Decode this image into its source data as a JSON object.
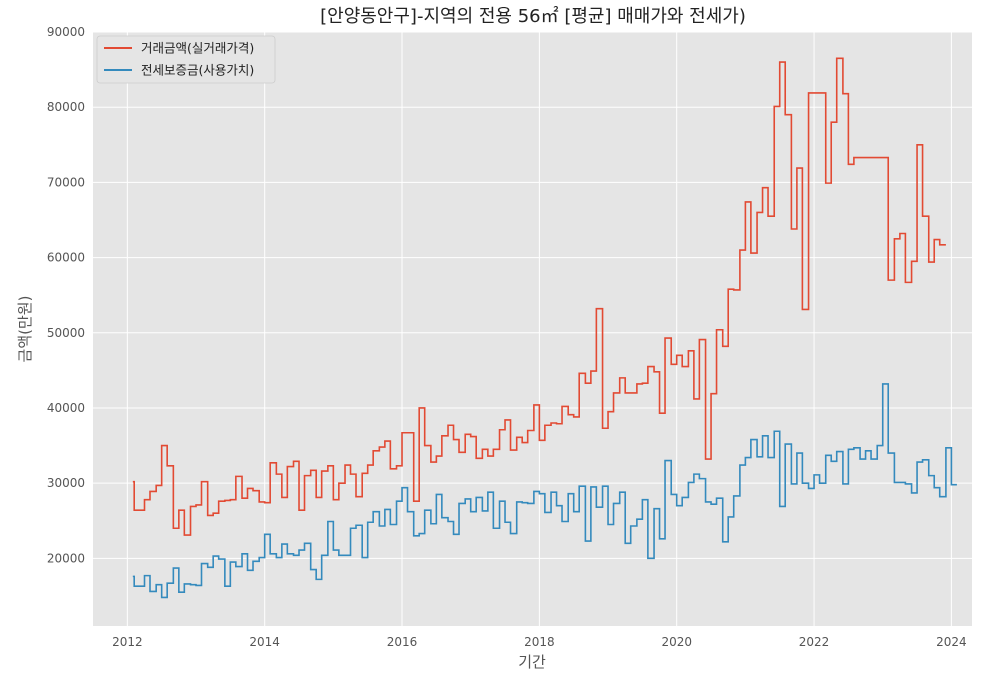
{
  "chart_data": {
    "type": "line",
    "step": true,
    "title": "[안양동안구]-지역의 전용 56㎡ [평균] 매매가와 전세가)",
    "xlabel": "기간",
    "ylabel": "금액(만원)",
    "x_ticks": [
      "2012",
      "2014",
      "2016",
      "2018",
      "2020",
      "2022",
      "2024"
    ],
    "xlim": [
      2011.5,
      2024.3
    ],
    "y_ticks": [
      "20000",
      "30000",
      "40000",
      "50000",
      "60000",
      "70000",
      "80000",
      "90000"
    ],
    "ylim": [
      11000,
      90000
    ],
    "grid": true,
    "legend_position": "top-left",
    "series": [
      {
        "name": "거래금액(실거래가격)",
        "color": "#E24A33",
        "points": [
          [
            2012.08,
            30200
          ],
          [
            2012.1,
            26400
          ],
          [
            2012.25,
            27800
          ],
          [
            2012.33,
            28900
          ],
          [
            2012.42,
            29700
          ],
          [
            2012.5,
            35000
          ],
          [
            2012.58,
            32300
          ],
          [
            2012.67,
            24000
          ],
          [
            2012.75,
            26400
          ],
          [
            2012.83,
            23100
          ],
          [
            2012.92,
            26900
          ],
          [
            2013.0,
            27100
          ],
          [
            2013.08,
            30200
          ],
          [
            2013.17,
            25700
          ],
          [
            2013.25,
            26000
          ],
          [
            2013.33,
            27600
          ],
          [
            2013.42,
            27700
          ],
          [
            2013.5,
            27800
          ],
          [
            2013.58,
            30900
          ],
          [
            2013.67,
            28000
          ],
          [
            2013.75,
            29300
          ],
          [
            2013.83,
            29000
          ],
          [
            2013.92,
            27500
          ],
          [
            2014.0,
            27400
          ],
          [
            2014.08,
            32700
          ],
          [
            2014.17,
            31200
          ],
          [
            2014.25,
            28100
          ],
          [
            2014.33,
            32200
          ],
          [
            2014.42,
            32900
          ],
          [
            2014.5,
            26400
          ],
          [
            2014.58,
            31000
          ],
          [
            2014.67,
            31700
          ],
          [
            2014.75,
            28100
          ],
          [
            2014.83,
            31600
          ],
          [
            2014.92,
            32300
          ],
          [
            2015.0,
            27800
          ],
          [
            2015.08,
            30000
          ],
          [
            2015.17,
            32400
          ],
          [
            2015.25,
            31200
          ],
          [
            2015.33,
            28200
          ],
          [
            2015.42,
            31300
          ],
          [
            2015.5,
            32400
          ],
          [
            2015.58,
            34300
          ],
          [
            2015.67,
            34800
          ],
          [
            2015.75,
            35600
          ],
          [
            2015.83,
            31900
          ],
          [
            2015.92,
            32300
          ],
          [
            2016.0,
            36700
          ],
          [
            2016.08,
            36700
          ],
          [
            2016.17,
            27600
          ],
          [
            2016.25,
            40000
          ],
          [
            2016.33,
            35000
          ],
          [
            2016.42,
            32800
          ],
          [
            2016.5,
            33600
          ],
          [
            2016.58,
            36300
          ],
          [
            2016.67,
            37700
          ],
          [
            2016.75,
            35800
          ],
          [
            2016.83,
            34100
          ],
          [
            2016.92,
            36500
          ],
          [
            2017.0,
            36200
          ],
          [
            2017.08,
            33300
          ],
          [
            2017.17,
            34500
          ],
          [
            2017.25,
            33600
          ],
          [
            2017.33,
            34500
          ],
          [
            2017.42,
            37100
          ],
          [
            2017.5,
            38400
          ],
          [
            2017.58,
            34400
          ],
          [
            2017.67,
            36100
          ],
          [
            2017.75,
            35400
          ],
          [
            2017.83,
            37000
          ],
          [
            2017.92,
            40400
          ],
          [
            2018.0,
            35700
          ],
          [
            2018.08,
            37700
          ],
          [
            2018.17,
            38000
          ],
          [
            2018.25,
            37900
          ],
          [
            2018.33,
            40200
          ],
          [
            2018.42,
            39100
          ],
          [
            2018.5,
            38800
          ],
          [
            2018.58,
            44600
          ],
          [
            2018.67,
            43300
          ],
          [
            2018.75,
            44900
          ],
          [
            2018.83,
            53200
          ],
          [
            2018.92,
            37300
          ],
          [
            2019.0,
            39500
          ],
          [
            2019.08,
            42000
          ],
          [
            2019.17,
            44000
          ],
          [
            2019.25,
            42000
          ],
          [
            2019.33,
            42000
          ],
          [
            2019.42,
            43200
          ],
          [
            2019.5,
            43300
          ],
          [
            2019.58,
            45500
          ],
          [
            2019.67,
            44800
          ],
          [
            2019.75,
            39300
          ],
          [
            2019.83,
            49300
          ],
          [
            2019.92,
            45800
          ],
          [
            2020.0,
            47000
          ],
          [
            2020.08,
            45500
          ],
          [
            2020.17,
            47600
          ],
          [
            2020.25,
            41200
          ],
          [
            2020.33,
            49100
          ],
          [
            2020.42,
            33200
          ],
          [
            2020.5,
            41900
          ],
          [
            2020.58,
            50400
          ],
          [
            2020.67,
            48200
          ],
          [
            2020.75,
            55800
          ],
          [
            2020.83,
            55700
          ],
          [
            2020.92,
            61000
          ],
          [
            2021.0,
            67400
          ],
          [
            2021.08,
            60600
          ],
          [
            2021.17,
            66000
          ],
          [
            2021.25,
            69300
          ],
          [
            2021.33,
            65500
          ],
          [
            2021.42,
            80100
          ],
          [
            2021.5,
            86000
          ],
          [
            2021.58,
            79000
          ],
          [
            2021.67,
            63800
          ],
          [
            2021.75,
            71900
          ],
          [
            2021.83,
            53100
          ],
          [
            2021.92,
            81900
          ],
          [
            2022.0,
            81900
          ],
          [
            2022.08,
            81900
          ],
          [
            2022.17,
            69900
          ],
          [
            2022.25,
            78000
          ],
          [
            2022.33,
            86500
          ],
          [
            2022.42,
            81800
          ],
          [
            2022.5,
            72400
          ],
          [
            2022.58,
            73300
          ],
          [
            2022.67,
            73300
          ],
          [
            2022.75,
            73300
          ],
          [
            2022.83,
            73300
          ],
          [
            2022.92,
            73300
          ],
          [
            2023.0,
            73300
          ],
          [
            2023.08,
            57000
          ],
          [
            2023.17,
            62500
          ],
          [
            2023.25,
            63200
          ],
          [
            2023.33,
            56700
          ],
          [
            2023.42,
            59500
          ],
          [
            2023.5,
            75000
          ],
          [
            2023.58,
            65500
          ],
          [
            2023.67,
            59400
          ],
          [
            2023.75,
            62400
          ],
          [
            2023.83,
            61700
          ],
          [
            2023.92,
            61700
          ]
        ]
      },
      {
        "name": "전세보증금(사용가치)",
        "color": "#348ABD",
        "points": [
          [
            2012.08,
            17600
          ],
          [
            2012.1,
            16300
          ],
          [
            2012.25,
            17700
          ],
          [
            2012.33,
            15600
          ],
          [
            2012.42,
            16500
          ],
          [
            2012.5,
            14800
          ],
          [
            2012.58,
            16700
          ],
          [
            2012.67,
            18700
          ],
          [
            2012.75,
            15500
          ],
          [
            2012.83,
            16600
          ],
          [
            2012.92,
            16500
          ],
          [
            2013.0,
            16400
          ],
          [
            2013.08,
            19300
          ],
          [
            2013.17,
            18800
          ],
          [
            2013.25,
            20300
          ],
          [
            2013.33,
            19900
          ],
          [
            2013.42,
            16300
          ],
          [
            2013.5,
            19500
          ],
          [
            2013.58,
            18900
          ],
          [
            2013.67,
            20600
          ],
          [
            2013.75,
            18400
          ],
          [
            2013.83,
            19600
          ],
          [
            2013.92,
            20100
          ],
          [
            2014.0,
            23200
          ],
          [
            2014.08,
            20600
          ],
          [
            2014.17,
            20100
          ],
          [
            2014.25,
            21900
          ],
          [
            2014.33,
            20600
          ],
          [
            2014.42,
            20400
          ],
          [
            2014.5,
            21100
          ],
          [
            2014.58,
            22000
          ],
          [
            2014.67,
            18500
          ],
          [
            2014.75,
            17200
          ],
          [
            2014.83,
            20400
          ],
          [
            2014.92,
            24900
          ],
          [
            2015.0,
            21100
          ],
          [
            2015.08,
            20400
          ],
          [
            2015.17,
            20400
          ],
          [
            2015.25,
            24000
          ],
          [
            2015.33,
            24400
          ],
          [
            2015.42,
            20100
          ],
          [
            2015.5,
            24800
          ],
          [
            2015.58,
            26200
          ],
          [
            2015.67,
            24300
          ],
          [
            2015.75,
            26500
          ],
          [
            2015.83,
            24500
          ],
          [
            2015.92,
            27600
          ],
          [
            2016.0,
            29400
          ],
          [
            2016.08,
            26200
          ],
          [
            2016.17,
            23000
          ],
          [
            2016.25,
            23300
          ],
          [
            2016.33,
            26400
          ],
          [
            2016.42,
            24600
          ],
          [
            2016.5,
            28500
          ],
          [
            2016.58,
            25400
          ],
          [
            2016.67,
            24900
          ],
          [
            2016.75,
            23200
          ],
          [
            2016.83,
            27300
          ],
          [
            2016.92,
            27900
          ],
          [
            2017.0,
            26200
          ],
          [
            2017.08,
            28100
          ],
          [
            2017.17,
            26300
          ],
          [
            2017.25,
            28800
          ],
          [
            2017.33,
            24000
          ],
          [
            2017.42,
            27600
          ],
          [
            2017.5,
            24800
          ],
          [
            2017.58,
            23300
          ],
          [
            2017.67,
            27500
          ],
          [
            2017.75,
            27400
          ],
          [
            2017.83,
            27300
          ],
          [
            2017.92,
            28900
          ],
          [
            2018.0,
            28600
          ],
          [
            2018.08,
            26100
          ],
          [
            2018.17,
            28800
          ],
          [
            2018.25,
            27000
          ],
          [
            2018.33,
            24900
          ],
          [
            2018.42,
            28600
          ],
          [
            2018.5,
            26200
          ],
          [
            2018.58,
            29600
          ],
          [
            2018.67,
            22300
          ],
          [
            2018.75,
            29500
          ],
          [
            2018.83,
            26800
          ],
          [
            2018.92,
            29600
          ],
          [
            2019.0,
            24500
          ],
          [
            2019.08,
            27300
          ],
          [
            2019.17,
            28800
          ],
          [
            2019.25,
            22000
          ],
          [
            2019.33,
            24300
          ],
          [
            2019.42,
            25200
          ],
          [
            2019.5,
            27800
          ],
          [
            2019.58,
            20000
          ],
          [
            2019.67,
            26600
          ],
          [
            2019.75,
            22600
          ],
          [
            2019.83,
            33000
          ],
          [
            2019.92,
            28500
          ],
          [
            2020.0,
            27000
          ],
          [
            2020.08,
            28100
          ],
          [
            2020.17,
            30100
          ],
          [
            2020.25,
            31200
          ],
          [
            2020.33,
            30600
          ],
          [
            2020.42,
            27500
          ],
          [
            2020.5,
            27200
          ],
          [
            2020.58,
            28000
          ],
          [
            2020.67,
            22200
          ],
          [
            2020.75,
            25500
          ],
          [
            2020.83,
            28300
          ],
          [
            2020.92,
            32400
          ],
          [
            2021.0,
            33400
          ],
          [
            2021.08,
            35800
          ],
          [
            2021.17,
            33500
          ],
          [
            2021.25,
            36300
          ],
          [
            2021.33,
            33400
          ],
          [
            2021.42,
            36900
          ],
          [
            2021.5,
            26900
          ],
          [
            2021.58,
            35200
          ],
          [
            2021.67,
            29900
          ],
          [
            2021.75,
            34000
          ],
          [
            2021.83,
            30000
          ],
          [
            2021.92,
            29300
          ],
          [
            2022.0,
            31100
          ],
          [
            2022.08,
            30000
          ],
          [
            2022.17,
            33700
          ],
          [
            2022.25,
            32900
          ],
          [
            2022.33,
            34200
          ],
          [
            2022.42,
            29900
          ],
          [
            2022.5,
            34500
          ],
          [
            2022.58,
            34700
          ],
          [
            2022.67,
            33200
          ],
          [
            2022.75,
            34300
          ],
          [
            2022.83,
            33200
          ],
          [
            2022.92,
            35000
          ],
          [
            2023.0,
            43200
          ],
          [
            2023.08,
            34000
          ],
          [
            2023.17,
            30100
          ],
          [
            2023.25,
            30100
          ],
          [
            2023.33,
            29900
          ],
          [
            2023.42,
            28700
          ],
          [
            2023.5,
            32800
          ],
          [
            2023.58,
            33100
          ],
          [
            2023.67,
            31000
          ],
          [
            2023.75,
            29400
          ],
          [
            2023.83,
            28200
          ],
          [
            2023.92,
            34700
          ],
          [
            2024.0,
            29800
          ],
          [
            2024.08,
            29800
          ]
        ]
      }
    ]
  }
}
